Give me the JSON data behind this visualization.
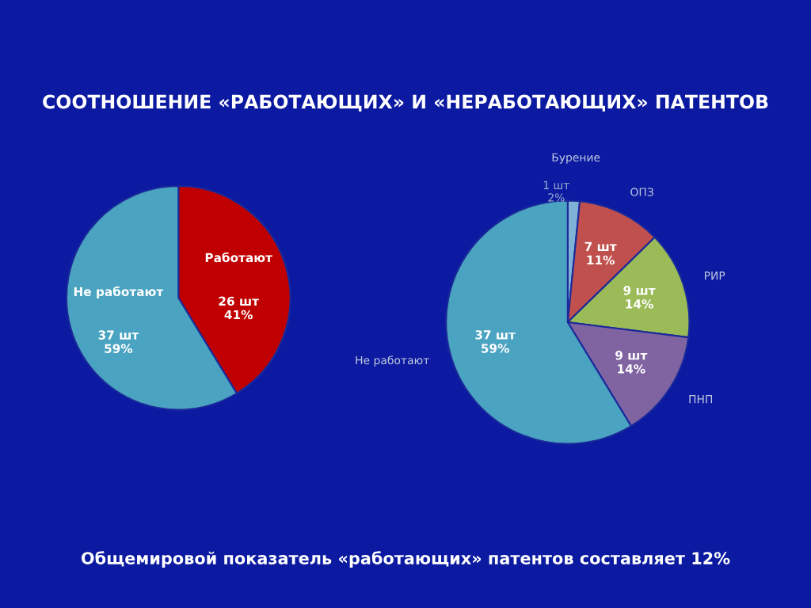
{
  "chart_data": [
    {
      "type": "pie",
      "title": "СООТНОШЕНИЕ «РАБОТАЮЩИХ» И «НЕРАБОТАЮЩИХ» ПАТЕНТОВ",
      "categories": [
        "Работают",
        "Не работают"
      ],
      "values": [
        26,
        37
      ],
      "colors": [
        "#c00000",
        "#4aa3c0"
      ],
      "value_labels": [
        "26 шт\n41%",
        "37 шт\n59%"
      ]
    },
    {
      "type": "pie",
      "categories": [
        "Бурение",
        "ОПЗ",
        "РИР",
        "ПНП",
        "Не работают"
      ],
      "values": [
        1,
        7,
        9,
        9,
        37
      ],
      "colors": [
        "#7fb2d6",
        "#c0504d",
        "#9bbb59",
        "#8064a2",
        "#4aa3c0"
      ],
      "value_labels": [
        "1 шт\n2%",
        "7 шт\n11%",
        "9 шт\n14%",
        "9 шт\n14%",
        "37 шт\n59%"
      ],
      "annotations": [
        "Общемировой показатель «работающих» патентов составляет 12%"
      ]
    }
  ]
}
